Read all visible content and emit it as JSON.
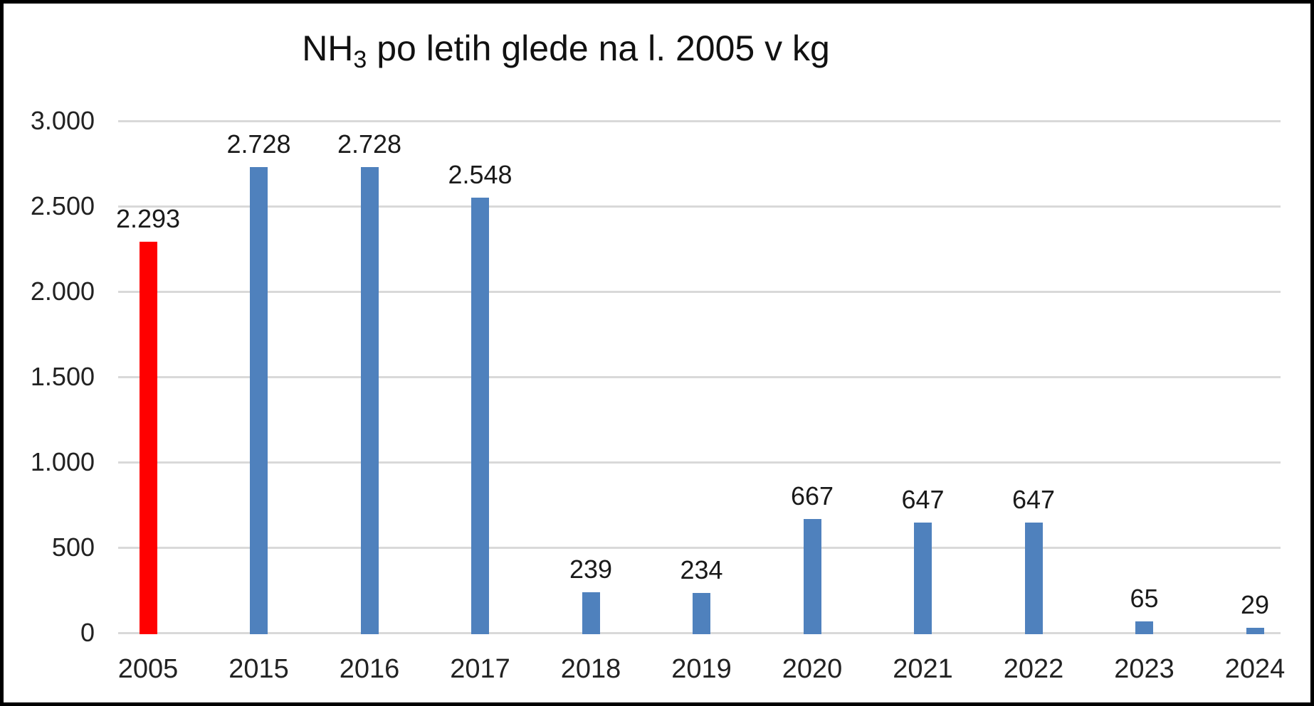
{
  "title": {
    "prefix": "NH",
    "subscript": "3",
    "suffix": " po letih glede na l. 2005 v kg"
  },
  "chart_data": {
    "type": "bar",
    "title": "NH3 po letih glede na l. 2005 v kg",
    "categories": [
      "2005",
      "2015",
      "2016",
      "2017",
      "2018",
      "2019",
      "2020",
      "2021",
      "2022",
      "2023",
      "2024"
    ],
    "values": [
      2293,
      2728,
      2728,
      2548,
      239,
      234,
      667,
      647,
      647,
      65,
      29
    ],
    "value_labels": [
      "2.293",
      "2.728",
      "2.728",
      "2.548",
      "239",
      "234",
      "667",
      "647",
      "647",
      "65",
      "29"
    ],
    "highlight_index": 0,
    "colors": {
      "default_bar": "#4f81bd",
      "highlight_bar": "#ff0000",
      "gridline": "#d9d9d9",
      "text": "#222222"
    },
    "y_axis": {
      "min": 0,
      "max": 3000,
      "tick_step": 500,
      "tick_values": [
        0,
        500,
        1000,
        1500,
        2000,
        2500,
        3000
      ],
      "tick_labels": [
        "0",
        "500",
        "1.000",
        "1.500",
        "2.000",
        "2.500",
        "3.000"
      ]
    },
    "xlabel": "",
    "ylabel": "",
    "grid": true,
    "legend": "none",
    "data_labels": "outside-end"
  }
}
